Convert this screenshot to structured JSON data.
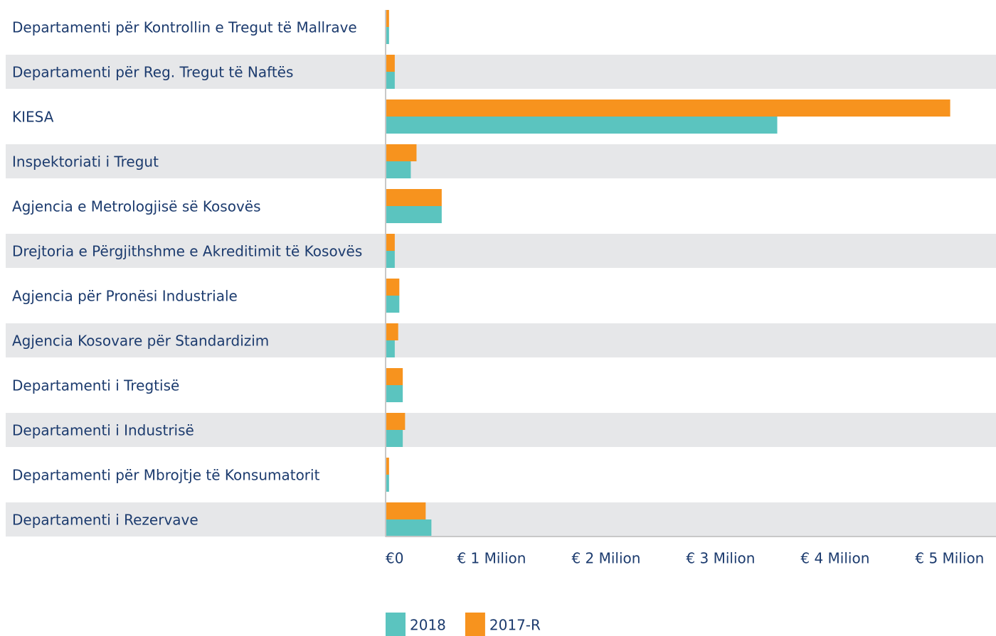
{
  "chart_data": {
    "type": "barh",
    "categories": [
      "Departamenti për Kontrollin e Tregut të Mallrave",
      "Departamenti për Reg. Tregut të Naftës",
      "KIESA",
      "Inspektoriati i Tregut",
      "Agjencia e Metrologjisë së Kosovës",
      "Drejtoria e Përgjithshme e Akreditimit të Kosovës",
      "Agjencia për Pronësi Industriale",
      "Agjencia Kosovare për Standardizim",
      "Departamenti i Tregtisë",
      "Departamenti i Industrisë",
      "Departamenti për Mbrojtje të Konsumatorit",
      "Departamenti i Rezervave"
    ],
    "series": [
      {
        "name": "2018",
        "color": "#5bc4bf",
        "values": [
          0.03,
          0.08,
          3.42,
          0.22,
          0.49,
          0.08,
          0.12,
          0.08,
          0.15,
          0.15,
          0.03,
          0.4
        ]
      },
      {
        "name": "2017-R",
        "color": "#f7931e",
        "values": [
          0.03,
          0.08,
          4.93,
          0.27,
          0.49,
          0.08,
          0.12,
          0.11,
          0.15,
          0.17,
          0.03,
          0.35
        ]
      }
    ],
    "xlim": [
      0,
      5.33
    ],
    "xticks": [
      {
        "value": 0,
        "label": "€0"
      },
      {
        "value": 1,
        "label": "€ 1 Milion"
      },
      {
        "value": 2,
        "label": "€ 2 Milion"
      },
      {
        "value": 3,
        "label": "€ 3 Milion"
      },
      {
        "value": 4,
        "label": "€ 4 Milion"
      },
      {
        "value": 5,
        "label": "€ 5 Milion"
      }
    ],
    "legend": "bottom"
  }
}
